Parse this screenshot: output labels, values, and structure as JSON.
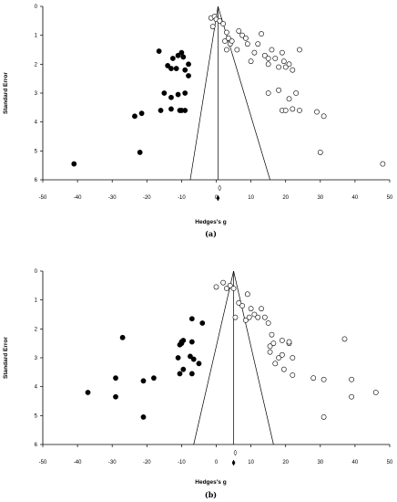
{
  "chart_data": [
    {
      "type": "scatter",
      "panel_label": "(a)",
      "xlabel": "Hedges's g",
      "ylabel": "Standard Error",
      "xlim": [
        -50,
        50
      ],
      "ylim": [
        0,
        6
      ],
      "y_inverted": true,
      "xticks": [
        "-50",
        "-40",
        "-30",
        "-20",
        "-10",
        "0",
        "10",
        "20",
        "30",
        "40",
        "50"
      ],
      "yticks": [
        "0",
        "1",
        "2",
        "3",
        "4",
        "5",
        "6"
      ],
      "funnel": {
        "center": 0.5,
        "apex_se": 0,
        "base_se": 6,
        "base_left": -7.5,
        "base_right": 15.5
      },
      "pooled": {
        "observed": 0.5,
        "imputed": 1.0,
        "se": 6.6
      },
      "series": [
        {
          "marker": "open-circle",
          "points": [
            [
              -1.5,
              0.4
            ],
            [
              -1.0,
              0.7
            ],
            [
              -0.5,
              0.35
            ],
            [
              0,
              0.45
            ],
            [
              1,
              0.5
            ],
            [
              2,
              0.6
            ],
            [
              2.5,
              1.2
            ],
            [
              3,
              0.9
            ],
            [
              3.5,
              1.1
            ],
            [
              4,
              1.3
            ],
            [
              4.5,
              1.2
            ],
            [
              3,
              1.5
            ],
            [
              6,
              1.5
            ],
            [
              6.5,
              0.85
            ],
            [
              7.5,
              1.0
            ],
            [
              8.5,
              1.1
            ],
            [
              9,
              1.3
            ],
            [
              10,
              1.9
            ],
            [
              11,
              1.6
            ],
            [
              12,
              1.3
            ],
            [
              13,
              0.95
            ],
            [
              14,
              1.7
            ],
            [
              15,
              1.8
            ],
            [
              15,
              2.0
            ],
            [
              16,
              1.5
            ],
            [
              17,
              1.8
            ],
            [
              18,
              2.1
            ],
            [
              19,
              1.6
            ],
            [
              19.5,
              1.9
            ],
            [
              20,
              2.1
            ],
            [
              21,
              2.0
            ],
            [
              22,
              2.2
            ],
            [
              24,
              1.5
            ],
            [
              15,
              3.0
            ],
            [
              18,
              2.9
            ],
            [
              19,
              3.6
            ],
            [
              20,
              3.6
            ],
            [
              21,
              3.2
            ],
            [
              22,
              3.55
            ],
            [
              23,
              3.0
            ],
            [
              24,
              3.6
            ],
            [
              29,
              3.65
            ],
            [
              31,
              3.8
            ],
            [
              30,
              5.05
            ],
            [
              48,
              5.45
            ]
          ]
        },
        {
          "marker": "filled-circle",
          "points": [
            [
              -16.5,
              1.55
            ],
            [
              -14,
              2.05
            ],
            [
              -12.5,
              1.8
            ],
            [
              -11.5,
              2.15
            ],
            [
              -11,
              1.7
            ],
            [
              -10,
              1.6
            ],
            [
              -9.5,
              1.75
            ],
            [
              -9,
              2.2
            ],
            [
              -8,
              2.0
            ],
            [
              -8,
              2.4
            ],
            [
              -13,
              2.15
            ],
            [
              -13,
              3.15
            ],
            [
              -15,
              3.0
            ],
            [
              -11,
              3.05
            ],
            [
              -9,
              3.0
            ],
            [
              -16,
              3.6
            ],
            [
              -13,
              3.55
            ],
            [
              -10.5,
              3.6
            ],
            [
              -10,
              3.6
            ],
            [
              -9,
              3.6
            ],
            [
              -21.5,
              3.7
            ],
            [
              -23.5,
              3.8
            ],
            [
              -22,
              5.05
            ],
            [
              -41,
              5.45
            ]
          ]
        }
      ]
    },
    {
      "type": "scatter",
      "panel_label": "(b)",
      "xlabel": "Hedges's g",
      "ylabel": "Standard Error",
      "xlim": [
        -50,
        50
      ],
      "ylim": [
        0,
        6
      ],
      "y_inverted": true,
      "xticks": [
        "-50",
        "-40",
        "-30",
        "-20",
        "-10",
        "0",
        "10",
        "20",
        "30",
        "40",
        "50"
      ],
      "yticks": [
        "0",
        "1",
        "2",
        "3",
        "4",
        "5",
        "6"
      ],
      "funnel": {
        "center": 5,
        "apex_se": 0,
        "base_se": 6,
        "base_left": -6.5,
        "base_right": 16.5
      },
      "pooled": {
        "observed": 5,
        "imputed": 5.5,
        "se": 6.6
      },
      "series": [
        {
          "marker": "open-circle",
          "points": [
            [
              0,
              0.55
            ],
            [
              2,
              0.4
            ],
            [
              3,
              0.6
            ],
            [
              4,
              0.5
            ],
            [
              5,
              0.6
            ],
            [
              5.5,
              1.6
            ],
            [
              6.5,
              1.1
            ],
            [
              7.5,
              1.2
            ],
            [
              8.5,
              1.7
            ],
            [
              9,
              0.8
            ],
            [
              9.5,
              1.6
            ],
            [
              10,
              1.3
            ],
            [
              11,
              1.5
            ],
            [
              12,
              1.6
            ],
            [
              13,
              1.3
            ],
            [
              14,
              1.6
            ],
            [
              15,
              1.8
            ],
            [
              15.5,
              2.8
            ],
            [
              15.5,
              2.6
            ],
            [
              16,
              2.2
            ],
            [
              16.5,
              2.5
            ],
            [
              17,
              3.2
            ],
            [
              18,
              3.0
            ],
            [
              19,
              2.9
            ],
            [
              19.5,
              3.4
            ],
            [
              19,
              2.4
            ],
            [
              21,
              2.5
            ],
            [
              21,
              2.45
            ],
            [
              22,
              3.0
            ],
            [
              22,
              3.6
            ],
            [
              28,
              3.7
            ],
            [
              31,
              3.75
            ],
            [
              37,
              2.35
            ],
            [
              39,
              3.75
            ],
            [
              31,
              5.05
            ],
            [
              39,
              4.35
            ],
            [
              46,
              4.2
            ]
          ]
        },
        {
          "marker": "filled-circle",
          "points": [
            [
              -10,
              2.45
            ],
            [
              -9.5,
              2.4
            ],
            [
              -10,
              2.5
            ],
            [
              -10.5,
              2.55
            ],
            [
              -7,
              1.65
            ],
            [
              -4,
              1.8
            ],
            [
              -27,
              2.3
            ],
            [
              -11,
              3.0
            ],
            [
              -7.5,
              2.95
            ],
            [
              -7,
              2.45
            ],
            [
              -6.5,
              3.05
            ],
            [
              -5,
              3.2
            ],
            [
              -9.5,
              3.4
            ],
            [
              -10.5,
              3.55
            ],
            [
              -7,
              3.55
            ],
            [
              -18,
              3.7
            ],
            [
              -21,
              3.8
            ],
            [
              -29,
              3.7
            ],
            [
              -37,
              4.2
            ],
            [
              -29,
              4.35
            ],
            [
              -21,
              5.05
            ]
          ]
        }
      ]
    }
  ]
}
